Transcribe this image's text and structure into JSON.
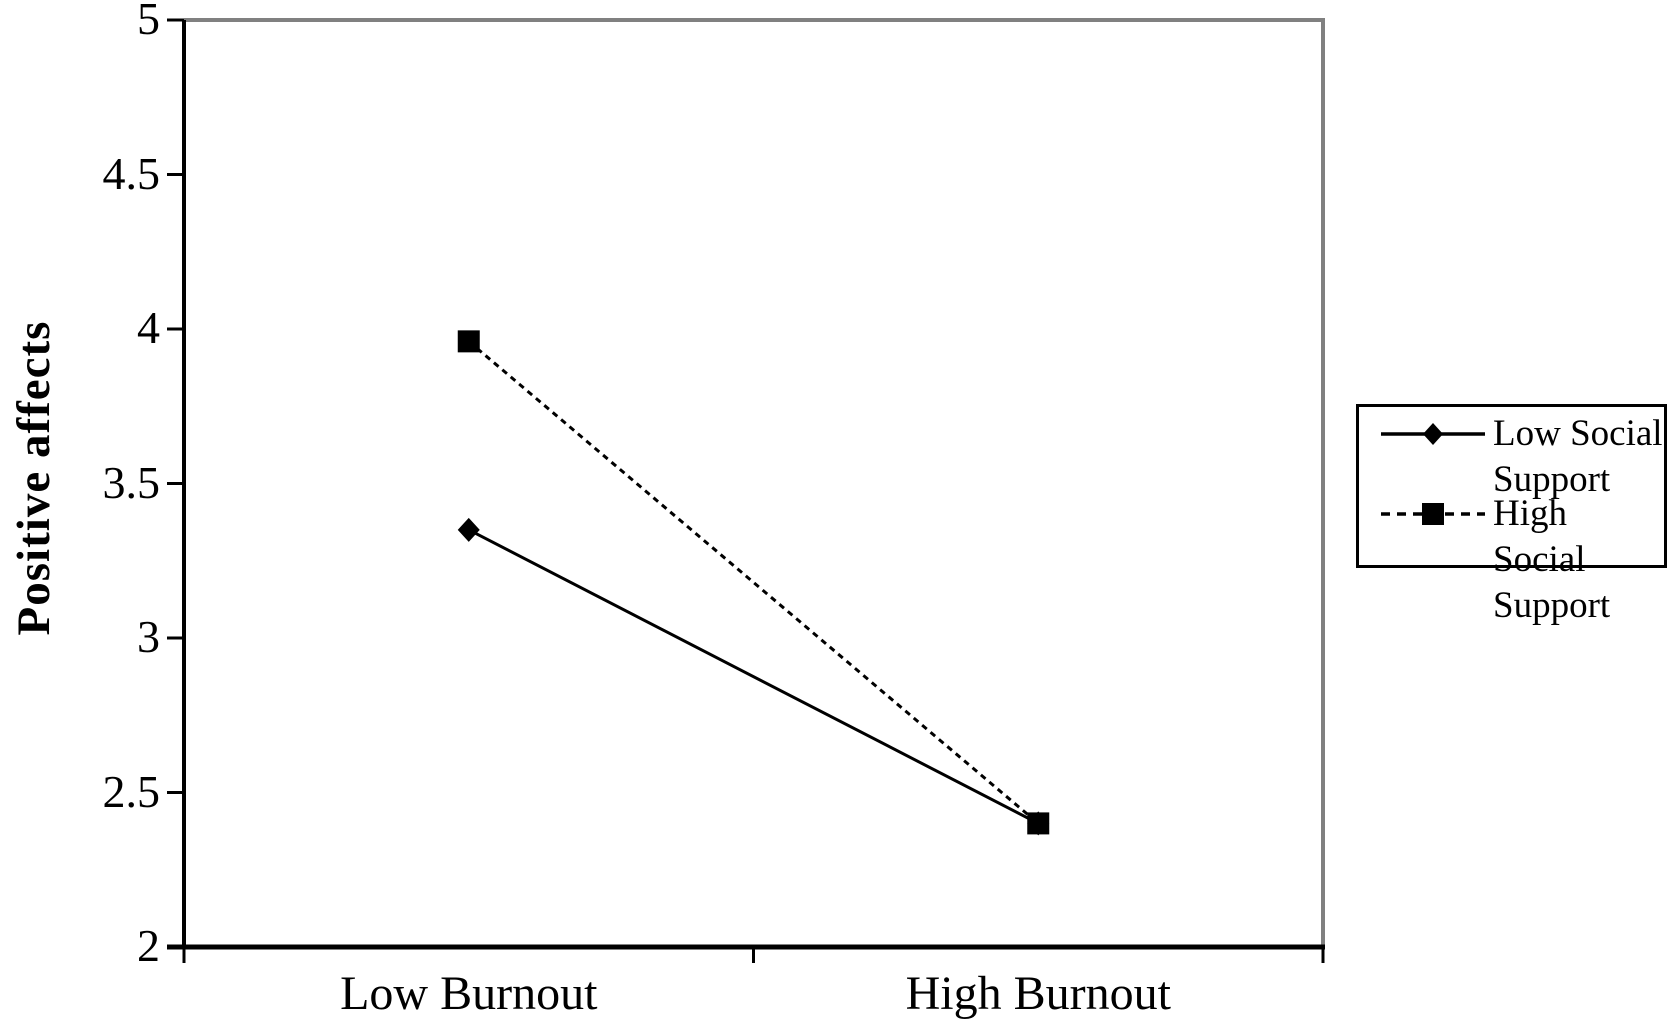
{
  "chart_data": {
    "type": "line",
    "title": "",
    "xlabel": "",
    "ylabel": "Positive affects",
    "categories": [
      "Low Burnout",
      "High Burnout"
    ],
    "series": [
      {
        "name": "Low Social Support",
        "values": [
          3.35,
          2.4
        ],
        "line_style": "solid",
        "marker": "diamond"
      },
      {
        "name": "High Social Support",
        "values": [
          3.96,
          2.4
        ],
        "line_style": "dashed",
        "marker": "square"
      }
    ],
    "ylim": [
      2,
      5
    ],
    "ytick_step": 0.5,
    "ytick_labels": [
      "2",
      "2.5",
      "3",
      "3.5",
      "4",
      "4.5",
      "5"
    ],
    "grid": false,
    "legend_position": "right",
    "colors": {
      "series_line": "#000000",
      "plot_border_gray": "#808080",
      "axis_black": "#000000",
      "text": "#000000",
      "background": "#ffffff"
    }
  }
}
